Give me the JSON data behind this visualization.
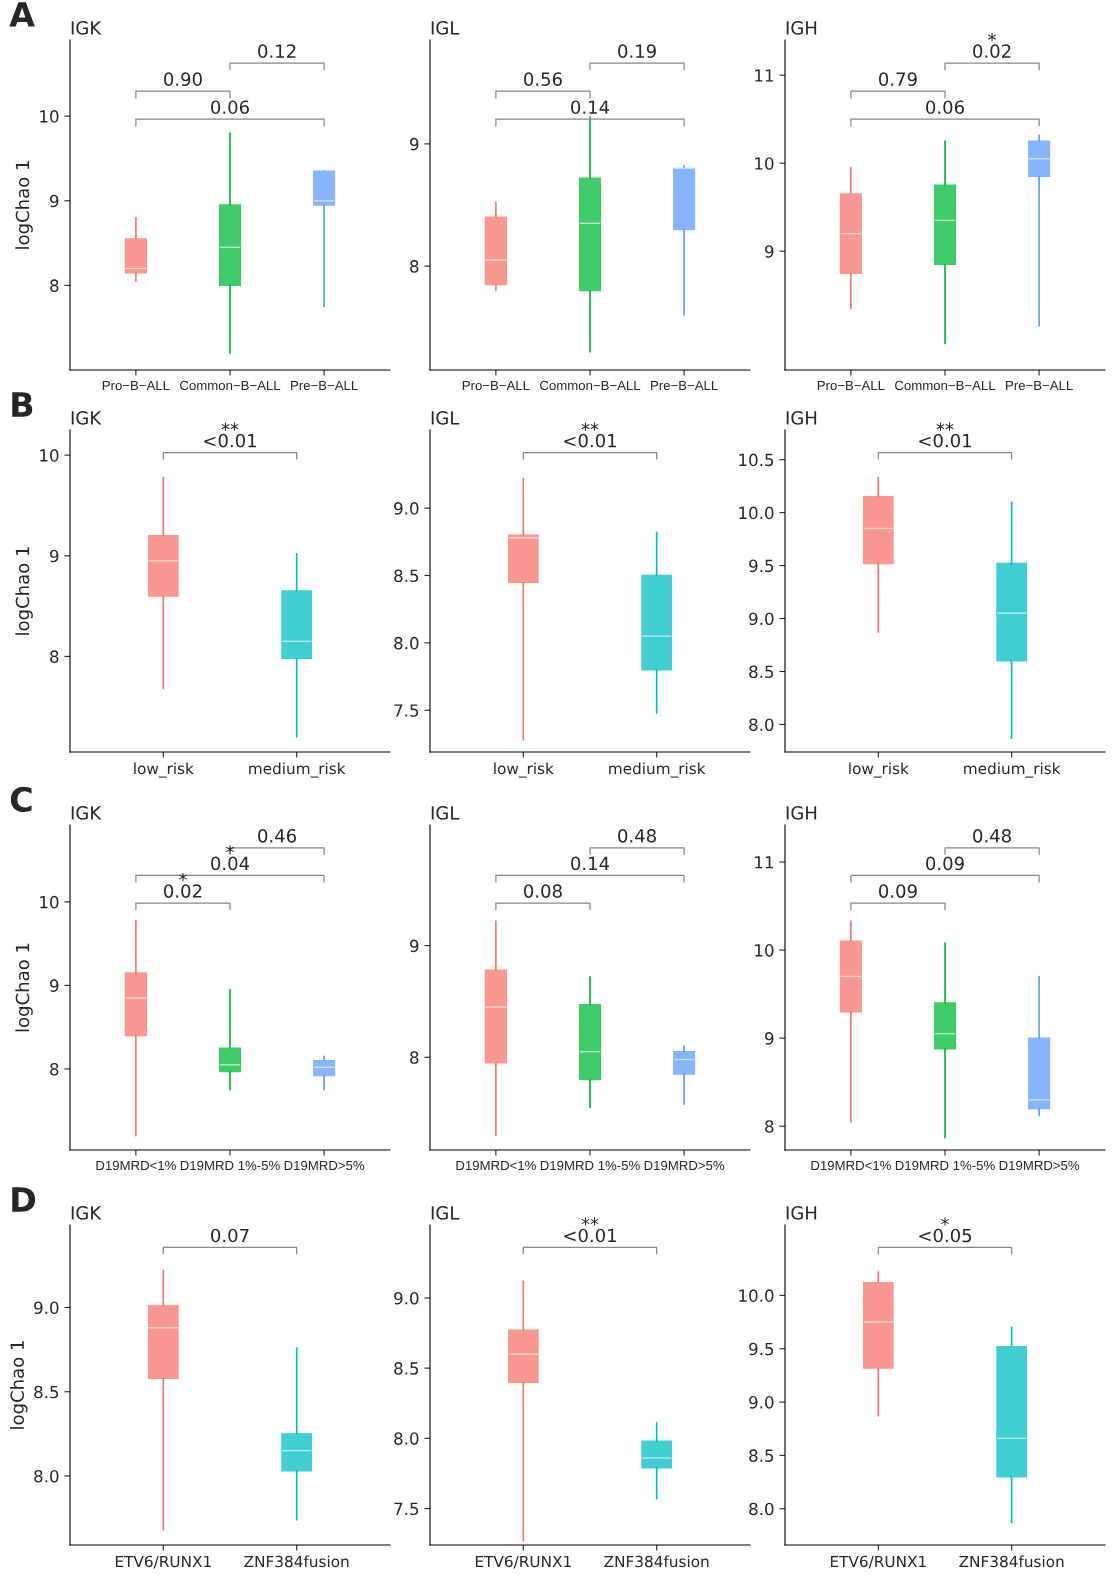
{
  "chart_data": [
    {
      "type": "box",
      "subtitle": "A",
      "title": "IGK",
      "ylabel": "logChao 1",
      "categories": [
        "Pro−B−ALL",
        "Common−B−ALL",
        "Pre−B−ALL"
      ],
      "colors": [
        "#f8766d",
        "#00ba38",
        "#619cff"
      ],
      "ylim": [
        7.0,
        10.9
      ],
      "yticks": [
        8,
        9,
        10
      ],
      "annotations": [
        "0.12",
        "0.90",
        "0.06"
      ],
      "boxes": [
        {
          "low": 8.05,
          "q1": 8.15,
          "median": 8.2,
          "q3": 8.55,
          "high": 8.8
        },
        {
          "low": 7.2,
          "q1": 8.0,
          "median": 8.45,
          "q3": 8.95,
          "high": 9.8
        },
        {
          "low": 7.75,
          "q1": 8.95,
          "median": 9.0,
          "q3": 9.35,
          "high": 9.35
        }
      ]
    },
    {
      "type": "box",
      "title": "IGL",
      "categories": [
        "Pro−B−ALL",
        "Common−B−ALL",
        "Pre−B−ALL"
      ],
      "colors": [
        "#f8766d",
        "#00ba38",
        "#619cff"
      ],
      "ylim": [
        7.15,
        9.85
      ],
      "yticks": [
        8,
        9
      ],
      "annotations": [
        "0.19",
        "0.56",
        "0.14"
      ],
      "boxes": [
        {
          "low": 7.8,
          "q1": 7.85,
          "median": 8.05,
          "q3": 8.4,
          "high": 8.52
        },
        {
          "low": 7.3,
          "q1": 7.8,
          "median": 8.35,
          "q3": 8.72,
          "high": 9.22
        },
        {
          "low": 7.6,
          "q1": 8.3,
          "median": 8.8,
          "q3": 8.8,
          "high": 8.82
        }
      ]
    },
    {
      "type": "box",
      "title": "IGH",
      "categories": [
        "Pro−B−ALL",
        "Common−B−ALL",
        "Pre−B−ALL"
      ],
      "colors": [
        "#f8766d",
        "#00ba38",
        "#619cff"
      ],
      "ylim": [
        7.65,
        11.4
      ],
      "yticks": [
        9,
        10,
        11
      ],
      "annotations": [
        "*\n0.02",
        "0.79",
        "0.06"
      ],
      "boxes": [
        {
          "low": 8.35,
          "q1": 8.75,
          "median": 9.2,
          "q3": 9.65,
          "high": 9.95
        },
        {
          "low": 7.95,
          "q1": 8.85,
          "median": 9.35,
          "q3": 9.75,
          "high": 10.25
        },
        {
          "low": 8.15,
          "q1": 9.85,
          "median": 10.05,
          "q3": 10.25,
          "high": 10.32
        }
      ]
    },
    {
      "type": "box",
      "subtitle": "B",
      "title": "IGK",
      "ylabel": "logChao 1",
      "categories": [
        "low_risk",
        "medium_risk"
      ],
      "colors": [
        "#f8766d",
        "#00bfc4"
      ],
      "ylim": [
        7.05,
        10.25
      ],
      "yticks": [
        8,
        9,
        10
      ],
      "annotations": [
        "**\n<0.01"
      ],
      "boxes": [
        {
          "low": 7.68,
          "q1": 8.6,
          "median": 8.95,
          "q3": 9.2,
          "high": 9.78
        },
        {
          "low": 7.2,
          "q1": 7.98,
          "median": 8.15,
          "q3": 8.65,
          "high": 9.02
        }
      ]
    },
    {
      "type": "box",
      "title": "IGL",
      "categories": [
        "low_risk",
        "medium_risk"
      ],
      "colors": [
        "#f8766d",
        "#00bfc4"
      ],
      "ylim": [
        7.19,
        9.58
      ],
      "yticks": [
        {
          "value": 7.5,
          "label": "7.5"
        },
        {
          "value": 8.0,
          "label": "8.0"
        },
        {
          "value": 8.5,
          "label": "8.5"
        },
        {
          "value": 9.0,
          "label": "9.0"
        }
      ],
      "annotations": [
        "**\n<0.01"
      ],
      "boxes": [
        {
          "low": 7.28,
          "q1": 8.45,
          "median": 8.78,
          "q3": 8.8,
          "high": 9.22
        },
        {
          "low": 7.48,
          "q1": 7.8,
          "median": 8.05,
          "q3": 8.5,
          "high": 8.82
        }
      ]
    },
    {
      "type": "box",
      "title": "IGH",
      "categories": [
        "low_risk",
        "medium_risk"
      ],
      "colors": [
        "#f8766d",
        "#00bfc4"
      ],
      "ylim": [
        7.74,
        10.78
      ],
      "yticks": [
        {
          "value": 8.0,
          "label": "8.0"
        },
        {
          "value": 8.5,
          "label": "8.5"
        },
        {
          "value": 9.0,
          "label": "9.0"
        },
        {
          "value": 9.5,
          "label": "9.5"
        },
        {
          "value": 10.0,
          "label": "10.0"
        },
        {
          "value": 10.5,
          "label": "10.5"
        }
      ],
      "annotations": [
        "**\n<0.01"
      ],
      "boxes": [
        {
          "low": 8.87,
          "q1": 9.52,
          "median": 9.85,
          "q3": 10.15,
          "high": 10.33
        },
        {
          "low": 7.87,
          "q1": 8.6,
          "median": 9.05,
          "q3": 9.52,
          "high": 10.1
        }
      ]
    },
    {
      "type": "box",
      "subtitle": "C",
      "title": "IGK",
      "ylabel": "logChao 1",
      "categories": [
        "D19MRD<1%",
        "D19MRD 1%-5%",
        "D19MRD>5%"
      ],
      "colors": [
        "#f8766d",
        "#00ba38",
        "#619cff"
      ],
      "ylim": [
        7.03,
        10.92
      ],
      "yticks": [
        8,
        9,
        10
      ],
      "annotations": [
        "0.46",
        "*\n0.04",
        "*\n0.02"
      ],
      "boxes": [
        {
          "low": 7.2,
          "q1": 8.4,
          "median": 8.85,
          "q3": 9.15,
          "high": 9.78
        },
        {
          "low": 7.75,
          "q1": 7.97,
          "median": 8.05,
          "q3": 8.25,
          "high": 8.95
        },
        {
          "low": 7.75,
          "q1": 7.92,
          "median": 8.02,
          "q3": 8.1,
          "high": 8.15
        }
      ]
    },
    {
      "type": "box",
      "title": "IGL",
      "categories": [
        "D19MRD<1%",
        "D19MRD 1%-5%",
        "D19MRD>5%"
      ],
      "colors": [
        "#f8766d",
        "#00ba38",
        "#619cff"
      ],
      "ylim": [
        7.17,
        10.08
      ],
      "yticks": [
        8,
        9
      ],
      "annotations": [
        "0.48",
        "0.14",
        "0.08"
      ],
      "boxes": [
        {
          "low": 7.3,
          "q1": 7.95,
          "median": 8.45,
          "q3": 8.78,
          "high": 9.22
        },
        {
          "low": 7.55,
          "q1": 7.8,
          "median": 8.05,
          "q3": 8.47,
          "high": 8.72
        },
        {
          "low": 7.58,
          "q1": 7.85,
          "median": 7.98,
          "q3": 8.05,
          "high": 8.1
        }
      ]
    },
    {
      "type": "box",
      "title": "IGH",
      "categories": [
        "D19MRD<1%",
        "D19MRD 1%-5%",
        "D19MRD>5%"
      ],
      "colors": [
        "#f8766d",
        "#00ba38",
        "#619cff"
      ],
      "ylim": [
        7.73,
        11.42
      ],
      "yticks": [
        8,
        9,
        10,
        11
      ],
      "annotations": [
        "0.48",
        "0.09",
        "0.09"
      ],
      "boxes": [
        {
          "low": 8.05,
          "q1": 9.3,
          "median": 9.7,
          "q3": 10.1,
          "high": 10.33
        },
        {
          "low": 7.87,
          "q1": 8.88,
          "median": 9.05,
          "q3": 9.4,
          "high": 10.08
        },
        {
          "low": 8.12,
          "q1": 8.2,
          "median": 8.3,
          "q3": 9.0,
          "high": 9.7
        }
      ]
    },
    {
      "type": "box",
      "subtitle": "D",
      "title": "IGK",
      "ylabel": "logChao 1",
      "categories": [
        "ETV6/RUNX1",
        "ZNF384fusion"
      ],
      "colors": [
        "#f8766d",
        "#00bfc4"
      ],
      "ylim": [
        7.59,
        9.49
      ],
      "yticks": [
        {
          "value": 8.0,
          "label": "8.0"
        },
        {
          "value": 8.5,
          "label": "8.5"
        },
        {
          "value": 9.0,
          "label": "9.0"
        }
      ],
      "annotations": [
        "0.07"
      ],
      "boxes": [
        {
          "low": 7.68,
          "q1": 8.58,
          "median": 8.88,
          "q3": 9.01,
          "high": 9.22
        },
        {
          "low": 7.74,
          "q1": 8.03,
          "median": 8.15,
          "q3": 8.25,
          "high": 8.76
        }
      ]
    },
    {
      "type": "box",
      "title": "IGL",
      "categories": [
        "ETV6/RUNX1",
        "ZNF384fusion"
      ],
      "colors": [
        "#f8766d",
        "#00bfc4"
      ],
      "ylim": [
        7.24,
        9.52
      ],
      "yticks": [
        {
          "value": 7.5,
          "label": "7.5"
        },
        {
          "value": 8.0,
          "label": "8.0"
        },
        {
          "value": 8.5,
          "label": "8.5"
        },
        {
          "value": 9.0,
          "label": "9.0"
        }
      ],
      "annotations": [
        "**\n<0.01"
      ],
      "boxes": [
        {
          "low": 7.27,
          "q1": 8.4,
          "median": 8.6,
          "q3": 8.77,
          "high": 9.12
        },
        {
          "low": 7.57,
          "q1": 7.79,
          "median": 7.86,
          "q3": 7.98,
          "high": 8.11
        }
      ]
    },
    {
      "type": "box",
      "title": "IGH",
      "categories": [
        "ETV6/RUNX1",
        "ZNF384fusion"
      ],
      "colors": [
        "#f8766d",
        "#00bfc4"
      ],
      "ylim": [
        7.66,
        10.66
      ],
      "yticks": [
        {
          "value": 8.0,
          "label": "8.0"
        },
        {
          "value": 8.5,
          "label": "8.5"
        },
        {
          "value": 9.0,
          "label": "9.0"
        },
        {
          "value": 9.5,
          "label": "9.5"
        },
        {
          "value": 10.0,
          "label": "10.0"
        }
      ],
      "annotations": [
        "*\n<0.05"
      ],
      "boxes": [
        {
          "low": 8.87,
          "q1": 9.32,
          "median": 9.75,
          "q3": 10.12,
          "high": 10.22
        },
        {
          "low": 7.87,
          "q1": 8.3,
          "median": 8.66,
          "q3": 9.52,
          "high": 9.7
        }
      ]
    }
  ]
}
